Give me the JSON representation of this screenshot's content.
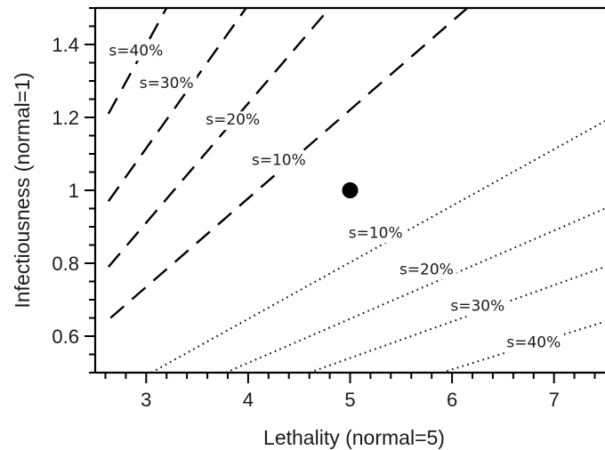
{
  "chart_data": {
    "type": "line",
    "xlabel": "Lethality (normal=5)",
    "ylabel": "Infectiousness (normal=1)",
    "xlim": [
      2.5,
      7.5
    ],
    "ylim": [
      0.5,
      1.5
    ],
    "x_ticks": [
      {
        "value": 3,
        "label": "3"
      },
      {
        "value": 4,
        "label": "4"
      },
      {
        "value": 5,
        "label": "5"
      },
      {
        "value": 6,
        "label": "6"
      },
      {
        "value": 7,
        "label": "7"
      }
    ],
    "y_ticks": [
      {
        "value": 0.6,
        "label": "0.6"
      },
      {
        "value": 0.8,
        "label": "0.8"
      },
      {
        "value": 1.0,
        "label": "1"
      },
      {
        "value": 1.2,
        "label": "1.2"
      },
      {
        "value": 1.4,
        "label": "1.4"
      }
    ],
    "point": {
      "x": 5,
      "y": 1.0,
      "color": "#000000"
    },
    "series": [
      {
        "label": "s=40%",
        "style": "dashed",
        "points": [
          [
            2.63,
            1.21
          ],
          [
            3.2,
            1.5
          ]
        ],
        "label_pos": [
          2.9,
          1.37
        ]
      },
      {
        "label": "s=30%",
        "style": "dashed",
        "points": [
          [
            2.63,
            0.97
          ],
          [
            3.98,
            1.5
          ]
        ],
        "label_pos": [
          3.2,
          1.28
        ]
      },
      {
        "label": "s=20%",
        "style": "dashed",
        "points": [
          [
            2.63,
            0.79
          ],
          [
            4.8,
            1.5
          ]
        ],
        "label_pos": [
          3.85,
          1.18
        ]
      },
      {
        "label": "s=10%",
        "style": "dashed",
        "points": [
          [
            2.65,
            0.65
          ],
          [
            6.15,
            1.5
          ]
        ],
        "label_pos": [
          4.3,
          1.07
        ]
      },
      {
        "label": "s=10%",
        "style": "dotted",
        "points": [
          [
            3.05,
            0.5
          ],
          [
            7.5,
            1.19
          ]
        ],
        "label_pos": [
          5.25,
          0.87
        ]
      },
      {
        "label": "s=20%",
        "style": "dotted",
        "points": [
          [
            3.78,
            0.5
          ],
          [
            7.5,
            0.95
          ]
        ],
        "label_pos": [
          5.75,
          0.77
        ]
      },
      {
        "label": "s=30%",
        "style": "dotted",
        "points": [
          [
            4.6,
            0.5
          ],
          [
            7.5,
            0.79
          ]
        ],
        "label_pos": [
          6.25,
          0.67
        ]
      },
      {
        "label": "s=40%",
        "style": "dotted",
        "points": [
          [
            5.9,
            0.5
          ],
          [
            7.5,
            0.64
          ]
        ],
        "label_pos": [
          6.8,
          0.57
        ]
      }
    ],
    "grid": false,
    "legend": "none"
  }
}
